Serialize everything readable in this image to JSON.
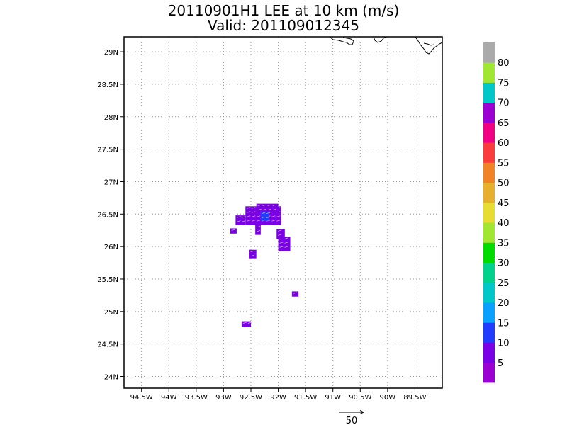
{
  "title": {
    "line1": "20110901H1 LEE at 10 km (m/s)",
    "line2": "Valid: 201109012345"
  },
  "map": {
    "x_ticks": [
      {
        "lon": -94.5,
        "label": "94.5W"
      },
      {
        "lon": -94.0,
        "label": "94W"
      },
      {
        "lon": -93.5,
        "label": "93.5W"
      },
      {
        "lon": -93.0,
        "label": "93W"
      },
      {
        "lon": -92.5,
        "label": "92.5W"
      },
      {
        "lon": -92.0,
        "label": "92W"
      },
      {
        "lon": -91.5,
        "label": "91.5W"
      },
      {
        "lon": -91.0,
        "label": "91W"
      },
      {
        "lon": -90.5,
        "label": "90.5W"
      },
      {
        "lon": -90.0,
        "label": "90W"
      },
      {
        "lon": -89.5,
        "label": "89.5W"
      }
    ],
    "y_ticks": [
      {
        "lat": 24.0,
        "label": "24N"
      },
      {
        "lat": 24.5,
        "label": "24.5N"
      },
      {
        "lat": 25.0,
        "label": "25N"
      },
      {
        "lat": 25.5,
        "label": "25.5N"
      },
      {
        "lat": 26.0,
        "label": "26N"
      },
      {
        "lat": 26.5,
        "label": "26.5N"
      },
      {
        "lat": 27.0,
        "label": "27N"
      },
      {
        "lat": 27.5,
        "label": "27.5N"
      },
      {
        "lat": 28.0,
        "label": "28N"
      },
      {
        "lat": 28.5,
        "label": "28.5N"
      },
      {
        "lat": 29.0,
        "label": "29N"
      }
    ],
    "lon_range": [
      -94.82,
      -89.0
    ],
    "lat_range": [
      23.82,
      29.23
    ],
    "grid": "dotted",
    "coastline_color": "#000000",
    "wind_regions": [
      {
        "lon": [
          -92.6,
          -91.95
        ],
        "lat": [
          26.33,
          26.62
        ],
        "speed": 7
      },
      {
        "lon": [
          -92.78,
          -92.6
        ],
        "lat": [
          26.33,
          26.48
        ],
        "speed": 6
      },
      {
        "lon": [
          -92.4,
          -92.0
        ],
        "lat": [
          26.52,
          26.66
        ],
        "speed": 7
      },
      {
        "lon": [
          -92.33,
          -92.17
        ],
        "lat": [
          26.4,
          26.54
        ],
        "speed": 12
      },
      {
        "lon": [
          -92.88,
          -92.76
        ],
        "lat": [
          26.2,
          26.28
        ],
        "speed": 6
      },
      {
        "lon": [
          -92.42,
          -92.32
        ],
        "lat": [
          26.18,
          26.33
        ],
        "speed": 6
      },
      {
        "lon": [
          -92.0,
          -91.78
        ],
        "lat": [
          25.93,
          26.15
        ],
        "speed": 7
      },
      {
        "lon": [
          -92.03,
          -91.88
        ],
        "lat": [
          26.12,
          26.27
        ],
        "speed": 7
      },
      {
        "lon": [
          -92.53,
          -92.4
        ],
        "lat": [
          25.82,
          25.95
        ],
        "speed": 6
      },
      {
        "lon": [
          -91.75,
          -91.63
        ],
        "lat": [
          25.23,
          25.31
        ],
        "speed": 6
      },
      {
        "lon": [
          -92.67,
          -92.5
        ],
        "lat": [
          24.76,
          24.85
        ],
        "speed": 6
      }
    ]
  },
  "colorbar": {
    "colors": [
      "#9b00d2",
      "#7a00e6",
      "#1f3cff",
      "#0aa0ff",
      "#00c8c8",
      "#00d28c",
      "#00dc00",
      "#a0e632",
      "#e6dc32",
      "#e6af2d",
      "#f08228",
      "#fa3c3c",
      "#f00082",
      "#9b00d2",
      "#00c8c8",
      "#a0e632",
      "#aaaaaa"
    ],
    "labels": [
      "5",
      "10",
      "15",
      "20",
      "25",
      "30",
      "35",
      "40",
      "45",
      "50",
      "55",
      "60",
      "65",
      "70",
      "75",
      "80"
    ]
  },
  "reference_vector": {
    "label": "50",
    "color": "#000000"
  },
  "colors": {
    "frame": "#000000",
    "grid": "#9a9a9a",
    "background": "#ffffff"
  }
}
